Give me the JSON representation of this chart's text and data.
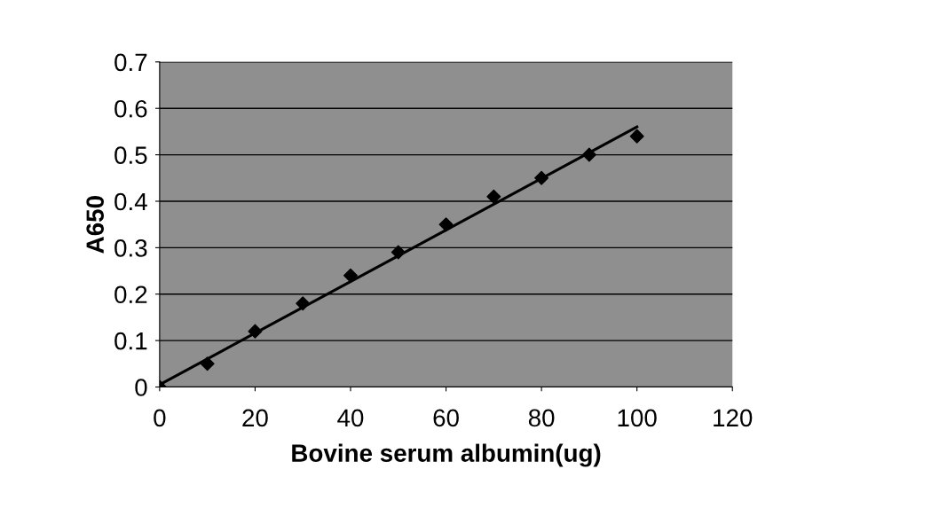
{
  "chart_data": {
    "type": "scatter",
    "xlabel": "Bovine serum albumin(ug)",
    "ylabel": "A650",
    "x": [
      0,
      10,
      20,
      30,
      40,
      50,
      60,
      70,
      80,
      90,
      100
    ],
    "series": [
      {
        "color": "#000000",
        "marker": "diamond",
        "values": [
          0,
          0.05,
          0.12,
          0.18,
          0.24,
          0.29,
          0.35,
          0.41,
          0.45,
          0.5,
          0.54
        ]
      },
      {
        "type": "line",
        "color": "#000000",
        "x": [
          0,
          100
        ],
        "values": [
          0.005,
          0.56
        ],
        "line_style": "solid"
      }
    ],
    "xlim": [
      0,
      120
    ],
    "xticks": [
      0,
      20,
      40,
      60,
      80,
      100,
      120
    ],
    "ylim": [
      0,
      0.7
    ],
    "yticks": [
      0,
      0.1,
      0.2,
      0.3,
      0.4,
      0.5,
      0.6,
      0.7
    ],
    "grid": "y"
  }
}
